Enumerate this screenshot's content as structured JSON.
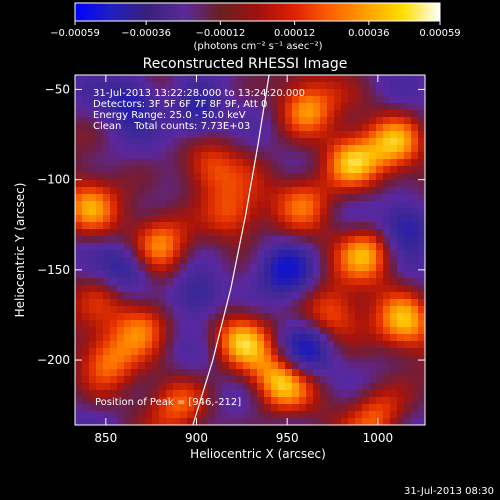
{
  "chart_data": {
    "type": "heatmap",
    "title": "Reconstructed RHESSI Image",
    "xlabel": "Heliocentric X (arcsec)",
    "ylabel": "Heliocentric Y (arcsec)",
    "xlim": [
      833,
      1026
    ],
    "ylim": [
      -236,
      -42
    ],
    "x_ticks": [
      850,
      900,
      950,
      1000
    ],
    "x_tick_labels": [
      "850",
      "900",
      "950",
      "1000"
    ],
    "y_ticks": [
      -50,
      -100,
      -150,
      -200
    ],
    "y_tick_labels": [
      "−50",
      "−100",
      "−150",
      "−200"
    ],
    "colorbar": {
      "range": [
        -0.00059,
        0.00059
      ],
      "ticks": [
        -0.00059,
        -0.00036,
        -0.00012,
        0.00012,
        0.00036,
        0.00059
      ],
      "tick_labels": [
        "−0.00059",
        "−0.00036",
        "−0.00012",
        "0.00012",
        "0.00036",
        "0.00059"
      ],
      "unit_label": "(photons cm⁻² s⁻¹ asec⁻²)",
      "colors": [
        "#0000ff",
        "#2020c0",
        "#3a207a",
        "#5a2a9a",
        "#6a2020",
        "#a01010",
        "#e02000",
        "#ff6000",
        "#ffa000",
        "#ffe000",
        "#ffffff"
      ]
    },
    "annotations": {
      "time_range": "31-Jul-2013 13:22:28.000 to 13:24:20.000",
      "detectors": "Detectors: 3F 5F 6F 7F 8F 9F, Att 0",
      "energy_range": "Energy Range: 25.0 - 50.0 keV",
      "clean_counts": "Clean    Total counts: 7.73E+03",
      "peak": "Position of Peak = [946,-212]"
    },
    "peak_position": [
      946,
      -212
    ],
    "limb_curve": [
      [
        940,
        -42
      ],
      [
        934,
        -80
      ],
      [
        927,
        -120
      ],
      [
        919,
        -160
      ],
      [
        909,
        -200
      ],
      [
        898,
        -236
      ]
    ],
    "hot_regions": [
      {
        "x": 960,
        "y": -60,
        "intensity": 0.9
      },
      {
        "x": 985,
        "y": -90,
        "intensity": 1.0
      },
      {
        "x": 1010,
        "y": -80,
        "intensity": 0.85
      },
      {
        "x": 995,
        "y": -140,
        "intensity": 0.95
      },
      {
        "x": 1015,
        "y": -180,
        "intensity": 0.9
      },
      {
        "x": 975,
        "y": -175,
        "intensity": 0.8
      },
      {
        "x": 946,
        "y": -212,
        "intensity": 1.0
      },
      {
        "x": 925,
        "y": -190,
        "intensity": 0.85
      },
      {
        "x": 870,
        "y": -180,
        "intensity": 0.9
      },
      {
        "x": 850,
        "y": -200,
        "intensity": 0.7
      },
      {
        "x": 880,
        "y": -135,
        "intensity": 0.75
      },
      {
        "x": 840,
        "y": -115,
        "intensity": 0.8
      },
      {
        "x": 905,
        "y": -95,
        "intensity": 0.7
      },
      {
        "x": 920,
        "y": -120,
        "intensity": 0.8
      },
      {
        "x": 1000,
        "y": -230,
        "intensity": 0.75
      },
      {
        "x": 960,
        "y": -110,
        "intensity": 0.65
      },
      {
        "x": 890,
        "y": -225,
        "intensity": 0.6
      },
      {
        "x": 850,
        "y": -160,
        "intensity": 0.55
      }
    ],
    "cool_regions": [
      {
        "x": 865,
        "y": -55
      },
      {
        "x": 900,
        "y": -65
      },
      {
        "x": 860,
        "y": -150
      },
      {
        "x": 900,
        "y": -165
      },
      {
        "x": 950,
        "y": -150
      },
      {
        "x": 960,
        "y": -195
      },
      {
        "x": 1015,
        "y": -125
      }
    ],
    "grid": false
  },
  "footer": {
    "timestamp": "31-Jul-2013 08:30"
  }
}
